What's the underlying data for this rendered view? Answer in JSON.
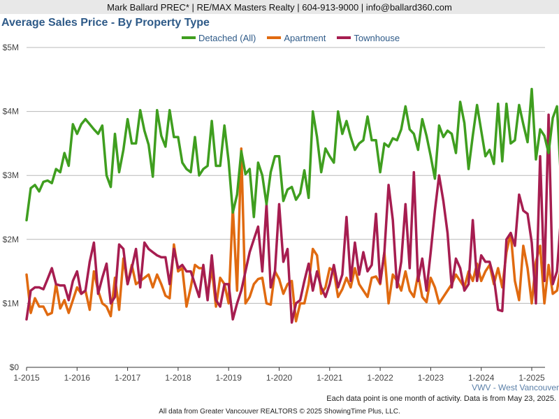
{
  "header": {
    "banner": "Mark Ballard PREC* | RE/MAX Masters Realty | 604-913-9000 | info@ballard360.com"
  },
  "region_label": "VWV - West Vancouver",
  "note": "Each data point is one month of activity. Data is from May 23, 2025.",
  "footer": "All data from Greater Vancouver REALTORS © 2025 ShowingTime Plus, LLC.",
  "chart_data": {
    "type": "line",
    "title": "Average Sales Price - By Property Type",
    "xlabel": "",
    "ylabel": "",
    "x_start": "1-2015",
    "x_ticks": [
      "1-2015",
      "1-2016",
      "1-2017",
      "1-2018",
      "1-2019",
      "1-2020",
      "1-2021",
      "1-2022",
      "1-2023",
      "1-2024",
      "1-2025"
    ],
    "y_ticks": [
      "$0",
      "$1M",
      "$2M",
      "$3M",
      "$4M",
      "$5M"
    ],
    "ylim": [
      0,
      5
    ],
    "y_unit": "millions of dollars",
    "grid": true,
    "legend_position": "top-center",
    "series": [
      {
        "name": "Detached (All)",
        "color": "#3f9e1f",
        "values": [
          2.3,
          2.8,
          2.85,
          2.75,
          2.9,
          2.92,
          2.88,
          3.1,
          3.05,
          3.35,
          3.15,
          3.8,
          3.65,
          3.8,
          3.88,
          3.8,
          3.72,
          3.65,
          3.78,
          3.0,
          2.82,
          3.65,
          3.05,
          3.4,
          3.88,
          3.5,
          3.5,
          4.02,
          3.7,
          3.48,
          2.98,
          4.02,
          3.62,
          3.45,
          4.02,
          3.6,
          3.6,
          3.2,
          3.1,
          3.05,
          3.6,
          3.0,
          3.1,
          3.15,
          3.85,
          3.15,
          3.15,
          3.78,
          3.22,
          2.42,
          2.7,
          3.38,
          3.02,
          3.1,
          2.35,
          3.2,
          3.0,
          2.55,
          3.05,
          3.3,
          3.3,
          2.6,
          2.78,
          2.82,
          2.62,
          2.72,
          3.08,
          2.65,
          4.0,
          3.6,
          3.05,
          3.42,
          3.3,
          3.2,
          4.0,
          3.65,
          3.85,
          3.6,
          3.4,
          3.5,
          3.55,
          3.92,
          3.55,
          3.55,
          3.05,
          3.5,
          3.45,
          3.58,
          3.55,
          3.72,
          4.08,
          3.72,
          3.65,
          3.4,
          3.88,
          3.62,
          3.3,
          2.95,
          3.78,
          3.6,
          3.7,
          3.65,
          3.35,
          4.15,
          3.82,
          3.1,
          3.62,
          4.1,
          3.7,
          3.3,
          3.4,
          3.18,
          4.12,
          3.22,
          4.12,
          3.5,
          3.55,
          4.1,
          3.8,
          3.52,
          4.35,
          3.25,
          3.72,
          3.62,
          3.35,
          3.9,
          4.08,
          2.85
        ]
      },
      {
        "name": "Apartment",
        "color": "#e06a10",
        "values": [
          1.45,
          0.85,
          1.08,
          0.95,
          0.95,
          0.82,
          0.85,
          1.3,
          0.92,
          1.05,
          0.85,
          1.05,
          1.25,
          1.15,
          1.2,
          0.9,
          1.5,
          1.2,
          1.0,
          0.95,
          0.8,
          1.4,
          0.9,
          1.7,
          1.3,
          1.6,
          1.3,
          1.35,
          1.4,
          1.45,
          1.25,
          1.45,
          1.3,
          1.12,
          1.08,
          1.92,
          1.5,
          1.55,
          0.95,
          1.25,
          1.6,
          1.55,
          1.55,
          1.12,
          1.55,
          0.95,
          1.4,
          1.3,
          1.0,
          2.5,
          1.2,
          3.42,
          1.0,
          1.1,
          1.3,
          1.38,
          1.4,
          1.0,
          0.98,
          1.5,
          1.38,
          1.15,
          1.3,
          1.35,
          0.72,
          1.0,
          1.0,
          1.3,
          1.85,
          1.75,
          1.15,
          1.25,
          1.55,
          1.5,
          1.1,
          1.22,
          1.4,
          1.25,
          1.55,
          1.3,
          1.2,
          1.1,
          1.4,
          1.42,
          1.3,
          1.8,
          1.0,
          1.45,
          1.35,
          1.2,
          1.5,
          1.2,
          1.1,
          1.45,
          1.1,
          1.02,
          1.4,
          1.25,
          1.0,
          1.1,
          1.2,
          1.3,
          1.45,
          1.35,
          1.25,
          1.5,
          1.35,
          1.62,
          1.35,
          1.5,
          1.6,
          1.3,
          1.55,
          1.25,
          1.8,
          2.1,
          1.35,
          1.05,
          1.9,
          1.55,
          1.0,
          1.65,
          1.9,
          1.0,
          1.6,
          1.15,
          1.2,
          1.6
        ]
      },
      {
        "name": "Townhouse",
        "color": "#a61d50",
        "values": [
          0.75,
          1.2,
          1.25,
          1.25,
          1.22,
          1.38,
          1.55,
          1.3,
          1.28,
          1.28,
          1.05,
          1.35,
          1.5,
          1.15,
          1.2,
          1.65,
          1.95,
          1.15,
          1.4,
          1.62,
          1.0,
          1.1,
          1.92,
          1.85,
          1.3,
          1.55,
          1.85,
          1.25,
          1.95,
          1.85,
          1.8,
          1.75,
          1.72,
          1.72,
          1.3,
          1.85,
          1.55,
          1.6,
          1.5,
          1.5,
          1.3,
          1.1,
          1.6,
          1.05,
          1.75,
          1.05,
          0.95,
          1.3,
          1.3,
          0.75,
          1.0,
          1.2,
          1.5,
          1.8,
          2.0,
          2.2,
          1.5,
          2.55,
          1.25,
          1.5,
          2.55,
          1.65,
          1.85,
          0.7,
          1.0,
          1.05,
          1.35,
          1.62,
          1.2,
          1.5,
          1.25,
          1.1,
          1.3,
          1.6,
          1.25,
          1.45,
          2.35,
          1.35,
          1.95,
          1.45,
          1.8,
          1.5,
          1.6,
          2.4,
          1.32,
          1.8,
          2.85,
          2.3,
          1.25,
          1.65,
          2.55,
          1.55,
          3.05,
          1.35,
          1.7,
          1.2,
          1.8,
          2.45,
          3.0,
          2.6,
          2.1,
          1.25,
          1.7,
          1.55,
          1.2,
          1.3,
          2.3,
          1.35,
          1.75,
          1.65,
          1.65,
          1.4,
          0.9,
          0.88,
          2.0,
          2.1,
          1.9,
          2.7,
          2.45,
          2.4,
          1.95,
          1.0,
          3.3,
          1.35,
          3.95,
          1.3,
          1.5,
          2.4,
          1.05,
          1.75
        ]
      }
    ]
  }
}
